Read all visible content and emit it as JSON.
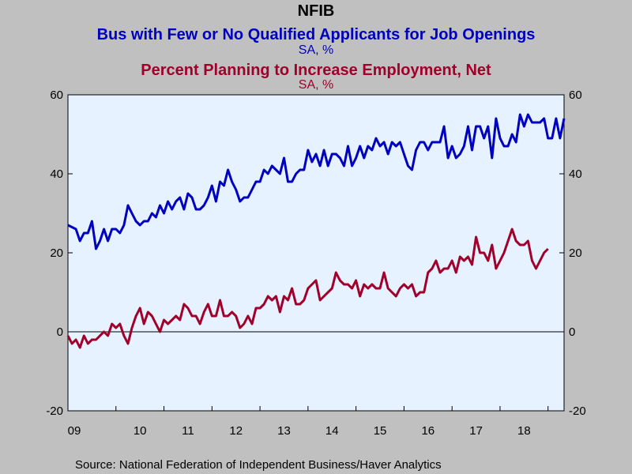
{
  "titles": {
    "main": "NFIB",
    "series1_title": "Bus with Few or No Qualified Applicants for Job Openings",
    "series1_units": "SA, %",
    "series2_title": "Percent Planning to Increase Employment, Net",
    "series2_units": "SA, %"
  },
  "source": "Source:  National Federation of Independent Business/Haver Analytics",
  "colors": {
    "background": "#c0c0c0",
    "plot_background": "#e6f2ff",
    "series1": "#0000c0",
    "series2": "#a0002a",
    "axis": "#000000"
  },
  "chart_data": {
    "type": "line",
    "ylim": [
      -20,
      60
    ],
    "y_ticks": [
      -20,
      0,
      20,
      40,
      60
    ],
    "x_start_year": 2009,
    "x_tick_labels": [
      "09",
      "10",
      "11",
      "12",
      "13",
      "14",
      "15",
      "16",
      "17",
      "18"
    ],
    "grid": false,
    "zero_line": true,
    "dual_axis": true,
    "series": [
      {
        "name": "Bus with Few or No Qualified Applicants for Job Openings",
        "color": "#0000c0",
        "values": [
          27,
          26.5,
          26,
          23,
          25,
          25,
          28,
          21,
          23,
          26,
          23,
          26,
          26,
          25,
          27,
          32,
          30,
          28,
          27,
          28,
          28,
          30,
          29,
          32,
          30,
          33,
          31,
          33,
          34,
          31,
          35,
          34,
          31,
          31,
          32,
          34,
          37,
          33,
          38,
          37,
          41,
          38,
          36,
          33,
          34,
          34,
          36,
          38,
          38,
          41,
          40,
          42,
          41,
          40,
          44,
          38,
          38,
          40,
          41,
          41,
          46,
          43,
          45,
          42,
          46,
          42,
          45,
          45,
          44,
          42,
          47,
          42,
          44,
          47,
          44,
          47,
          46,
          49,
          47,
          48,
          45,
          48,
          47,
          48,
          45,
          42,
          41,
          46,
          48,
          48,
          46,
          48,
          48,
          48,
          52,
          44,
          47,
          44,
          45,
          47,
          52,
          46,
          52,
          52,
          49,
          52,
          44,
          54,
          49,
          47,
          47,
          50,
          48,
          55,
          52,
          55,
          53,
          53,
          53,
          54,
          49,
          49,
          54,
          49,
          54
        ]
      },
      {
        "name": "Percent Planning to Increase Employment, Net",
        "color": "#a0002a",
        "values": [
          -1,
          -3,
          -2,
          -4,
          -1,
          -3,
          -2,
          -2,
          -1,
          0,
          -1,
          2,
          1,
          2,
          -1,
          -3,
          1,
          4,
          6,
          2,
          5,
          4,
          2,
          0,
          3,
          2,
          3,
          4,
          3,
          7,
          6,
          4,
          4,
          2,
          5,
          7,
          4,
          4,
          8,
          4,
          4,
          5,
          4,
          1,
          2,
          4,
          2,
          6,
          6,
          7,
          9,
          8,
          9,
          5,
          9,
          8,
          11,
          7,
          7,
          8,
          11,
          12,
          13,
          8,
          9,
          10,
          11,
          15,
          13,
          12,
          12,
          11,
          13,
          9,
          12,
          11,
          12,
          11,
          11,
          15,
          11,
          10,
          9,
          11,
          12,
          11,
          12,
          9,
          10,
          10,
          15,
          16,
          18,
          15,
          16,
          16,
          18,
          15,
          19,
          18,
          19,
          17,
          24,
          20,
          20,
          18,
          22,
          16,
          18,
          20,
          23,
          26,
          23,
          22,
          22,
          23,
          18,
          16,
          18,
          20,
          21
        ]
      }
    ]
  }
}
